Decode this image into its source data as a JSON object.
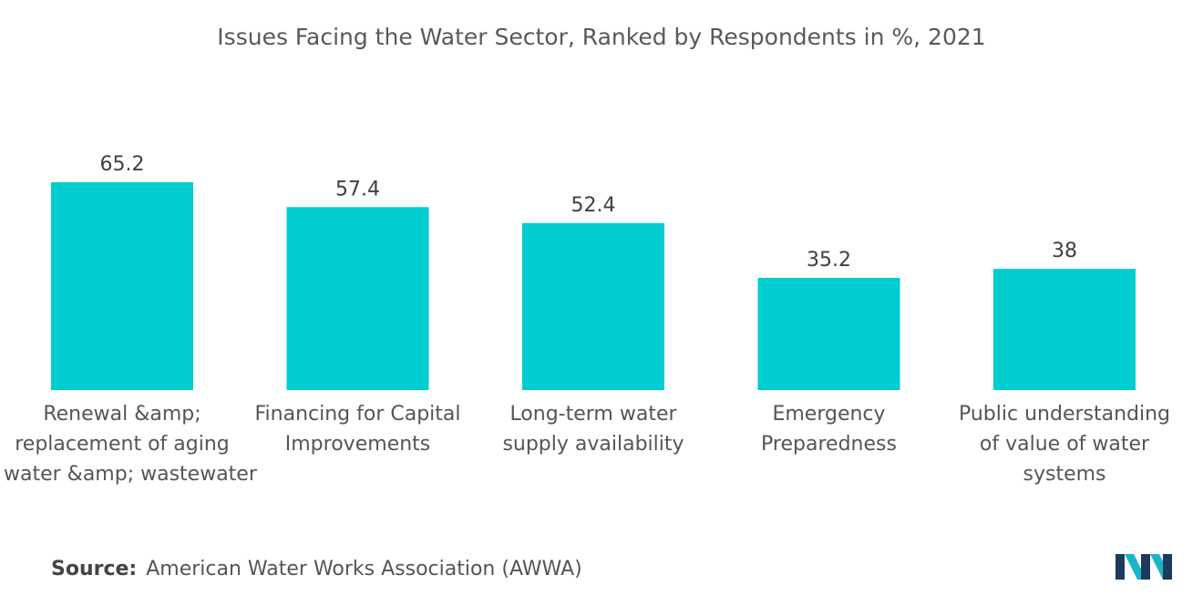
{
  "chart_data": {
    "type": "bar",
    "title": "Issues Facing the Water Sector, Ranked by Respondents in %, 2021",
    "categories": [
      "Renewal &amp; replacement of aging water &amp; wastewater",
      "Financing for Capital Improvements",
      "Long-term water supply availability",
      "Emergency Preparedness",
      "Public understanding of value of water systems"
    ],
    "category_lines": [
      [
        "Renewal &amp;",
        "replacement of aging",
        "water &amp; wastewater"
      ],
      [
        "Financing for Capital",
        "Improvements"
      ],
      [
        "Long-term water",
        "supply availability"
      ],
      [
        "Emergency",
        "Preparedness"
      ],
      [
        "Public understanding",
        "of value of water",
        "systems"
      ]
    ],
    "values": [
      65.2,
      57.4,
      52.4,
      35.2,
      38
    ],
    "value_labels": [
      "65.2",
      "57.4",
      "52.4",
      "35.2",
      "38"
    ],
    "xlabel": "",
    "ylabel": "",
    "ylim": [
      0,
      65.2
    ],
    "grid": false,
    "legend": "none",
    "bar_color": "#00cdd0"
  },
  "source": {
    "prefix": "Source:",
    "text": "American Water Works Association (AWWA)"
  },
  "logo": {
    "icon": "mordor-intelligence-logo-icon",
    "colors": [
      "#1b3a5c",
      "#19b5c9"
    ]
  }
}
